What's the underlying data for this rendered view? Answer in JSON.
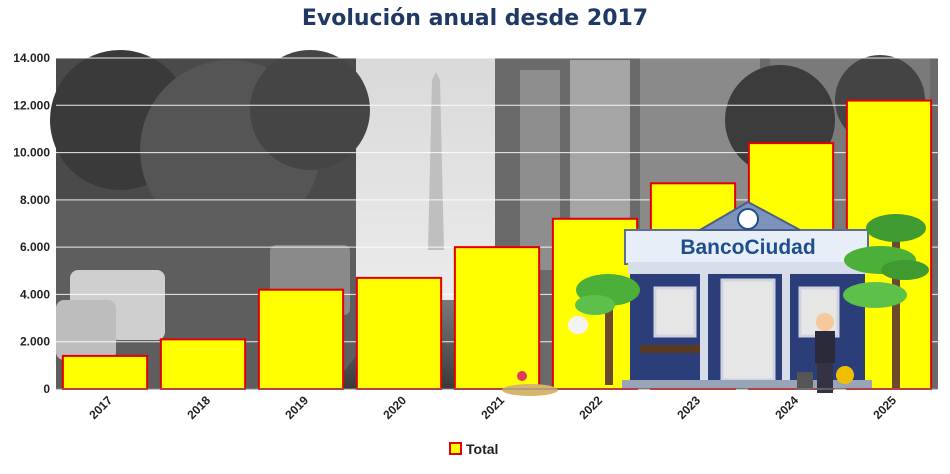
{
  "chart_data": {
    "type": "bar",
    "title": "Evolución anual  desde 2017",
    "categories": [
      "2017",
      "2018",
      "2019",
      "2020",
      "2021",
      "2022",
      "2023",
      "2024",
      "2025"
    ],
    "series": [
      {
        "name": "Total",
        "values": [
          1400,
          2100,
          4200,
          4700,
          6000,
          7200,
          8700,
          10400,
          12200
        ]
      }
    ],
    "ylim": [
      0,
      14000
    ],
    "yticks": [
      "0",
      "2.000",
      "4.000",
      "6.000",
      "8.000",
      "10.000",
      "12.000",
      "14.000"
    ],
    "ytick_values": [
      0,
      2000,
      4000,
      6000,
      8000,
      10000,
      12000,
      14000
    ],
    "grid": true,
    "legend": "bottom-center",
    "colors": {
      "bar_fill": "#ffff00",
      "bar_stroke": "#e00000",
      "title": "#1f3864"
    }
  }
}
